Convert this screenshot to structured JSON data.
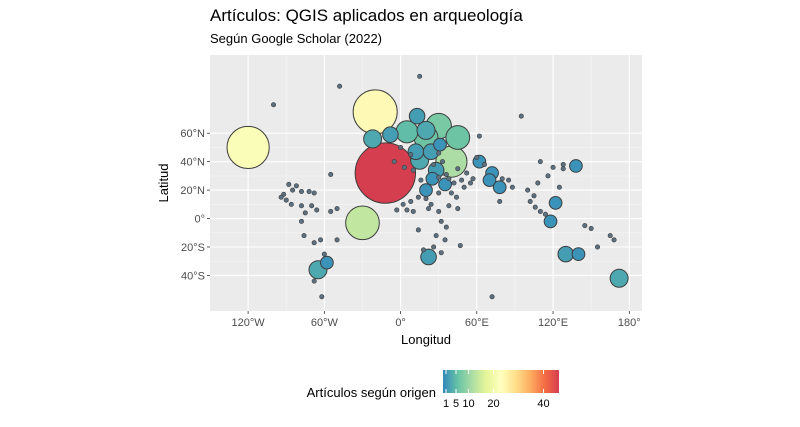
{
  "chart_data": {
    "type": "scatter",
    "title": "Artículos: QGIS aplicados en arqueología",
    "subtitle": "Según Google Scholar (2022)",
    "xlabel": "Longitud",
    "ylabel": "Latitud",
    "xlim": [
      -150,
      190
    ],
    "ylim": [
      -65,
      115
    ],
    "x_ticks": [
      {
        "value": -120,
        "label": "120°W"
      },
      {
        "value": -60,
        "label": "60°W"
      },
      {
        "value": 0,
        "label": "0°"
      },
      {
        "value": 60,
        "label": "60°E"
      },
      {
        "value": 120,
        "label": "120°E"
      },
      {
        "value": 180,
        "label": "180°"
      }
    ],
    "y_ticks": [
      {
        "value": 60,
        "label": "60°N"
      },
      {
        "value": 40,
        "label": "40°N"
      },
      {
        "value": 20,
        "label": "20°N"
      },
      {
        "value": 0,
        "label": "0°"
      },
      {
        "value": -20,
        "label": "20°S"
      },
      {
        "value": -40,
        "label": "40°S"
      }
    ],
    "grid": true,
    "legend": {
      "title": "Artículos según origen",
      "position": "bottom",
      "ticks": [
        1,
        5,
        10,
        20,
        40
      ],
      "range": [
        1,
        45
      ],
      "colors": [
        "#3288bd",
        "#66c2a5",
        "#abdda4",
        "#e6f598",
        "#ffffbf",
        "#fee08b",
        "#fdae61",
        "#f46d43",
        "#d53e4f"
      ]
    },
    "points": [
      {
        "lon": -120,
        "lat": 50,
        "n": 22
      },
      {
        "lon": -20,
        "lat": 75,
        "n": 24
      },
      {
        "lon": -12,
        "lat": 32,
        "n": 45
      },
      {
        "lon": -30,
        "lat": -3,
        "n": 14
      },
      {
        "lon": 40,
        "lat": 40,
        "n": 12
      },
      {
        "lon": 30,
        "lat": 65,
        "n": 8
      },
      {
        "lon": 45,
        "lat": 57,
        "n": 7
      },
      {
        "lon": 20,
        "lat": 57,
        "n": 7
      },
      {
        "lon": 5,
        "lat": 61,
        "n": 6
      },
      {
        "lon": -22,
        "lat": 56,
        "n": 4
      },
      {
        "lon": -8,
        "lat": 59,
        "n": 3
      },
      {
        "lon": 13,
        "lat": 72,
        "n": 3
      },
      {
        "lon": 20,
        "lat": 62,
        "n": 4
      },
      {
        "lon": 15,
        "lat": 41,
        "n": 4
      },
      {
        "lon": 12,
        "lat": 47,
        "n": 3
      },
      {
        "lon": 24,
        "lat": 47,
        "n": 3
      },
      {
        "lon": 28,
        "lat": 34,
        "n": 3
      },
      {
        "lon": 31,
        "lat": 52,
        "n": 2
      },
      {
        "lon": 25,
        "lat": 28,
        "n": 2
      },
      {
        "lon": 35,
        "lat": 24,
        "n": 2
      },
      {
        "lon": 20,
        "lat": 20,
        "n": 2
      },
      {
        "lon": 62,
        "lat": 40,
        "n": 2
      },
      {
        "lon": 72,
        "lat": 32,
        "n": 2
      },
      {
        "lon": 70,
        "lat": 27,
        "n": 2
      },
      {
        "lon": 78,
        "lat": 22,
        "n": 2
      },
      {
        "lon": 138,
        "lat": 37,
        "n": 2
      },
      {
        "lon": 122,
        "lat": 11,
        "n": 2
      },
      {
        "lon": 118,
        "lat": -2,
        "n": 2
      },
      {
        "lon": 130,
        "lat": -25,
        "n": 3
      },
      {
        "lon": 140,
        "lat": -25,
        "n": 2
      },
      {
        "lon": 172,
        "lat": -42,
        "n": 4
      },
      {
        "lon": -65,
        "lat": -36,
        "n": 4
      },
      {
        "lon": -58,
        "lat": -31,
        "n": 2
      },
      {
        "lon": 22,
        "lat": -27,
        "n": 3
      },
      {
        "lon": -48,
        "lat": 93,
        "n": 1
      },
      {
        "lon": 15,
        "lat": 100,
        "n": 1
      },
      {
        "lon": -100,
        "lat": 80,
        "n": 1
      },
      {
        "lon": 95,
        "lat": 72,
        "n": 1
      },
      {
        "lon": -88,
        "lat": 24,
        "n": 1
      },
      {
        "lon": -82,
        "lat": 23,
        "n": 1
      },
      {
        "lon": -85,
        "lat": 20,
        "n": 1
      },
      {
        "lon": -78,
        "lat": 19,
        "n": 1
      },
      {
        "lon": -72,
        "lat": 19,
        "n": 1
      },
      {
        "lon": -68,
        "lat": 18,
        "n": 1
      },
      {
        "lon": -92,
        "lat": 17,
        "n": 1
      },
      {
        "lon": -94,
        "lat": 15,
        "n": 1
      },
      {
        "lon": -90,
        "lat": 13,
        "n": 1
      },
      {
        "lon": -86,
        "lat": 10,
        "n": 1
      },
      {
        "lon": -78,
        "lat": 9,
        "n": 1
      },
      {
        "lon": -75,
        "lat": 4,
        "n": 1
      },
      {
        "lon": -70,
        "lat": 9,
        "n": 1
      },
      {
        "lon": -66,
        "lat": 6,
        "n": 1
      },
      {
        "lon": -55,
        "lat": 5,
        "n": 1
      },
      {
        "lon": -50,
        "lat": 7,
        "n": 1
      },
      {
        "lon": -78,
        "lat": -2,
        "n": 1
      },
      {
        "lon": -76,
        "lat": -12,
        "n": 1
      },
      {
        "lon": -68,
        "lat": -17,
        "n": 1
      },
      {
        "lon": -63,
        "lat": -15,
        "n": 1
      },
      {
        "lon": -60,
        "lat": -25,
        "n": 1
      },
      {
        "lon": -50,
        "lat": -15,
        "n": 1
      },
      {
        "lon": -55,
        "lat": 31,
        "n": 1
      },
      {
        "lon": -68,
        "lat": -44,
        "n": 1
      },
      {
        "lon": -62,
        "lat": -55,
        "n": 1
      },
      {
        "lon": -3,
        "lat": 6,
        "n": 1
      },
      {
        "lon": 5,
        "lat": 6,
        "n": 1
      },
      {
        "lon": 10,
        "lat": 5,
        "n": 1
      },
      {
        "lon": 8,
        "lat": 12,
        "n": 1
      },
      {
        "lon": 2,
        "lat": 10,
        "n": 1
      },
      {
        "lon": 22,
        "lat": 7,
        "n": 1
      },
      {
        "lon": 30,
        "lat": 5,
        "n": 1
      },
      {
        "lon": 38,
        "lat": 9,
        "n": 1
      },
      {
        "lon": 45,
        "lat": 7,
        "n": 1
      },
      {
        "lon": 32,
        "lat": -2,
        "n": 1
      },
      {
        "lon": 36,
        "lat": -6,
        "n": 1
      },
      {
        "lon": 28,
        "lat": -12,
        "n": 1
      },
      {
        "lon": 35,
        "lat": -15,
        "n": 1
      },
      {
        "lon": 47,
        "lat": -19,
        "n": 1
      },
      {
        "lon": 26,
        "lat": -20,
        "n": 1
      },
      {
        "lon": 18,
        "lat": -22,
        "n": 1
      },
      {
        "lon": 32,
        "lat": -24,
        "n": 1
      },
      {
        "lon": 14,
        "lat": -8,
        "n": 1
      },
      {
        "lon": 20,
        "lat": 14,
        "n": 1
      },
      {
        "lon": 44,
        "lat": 15,
        "n": 1
      },
      {
        "lon": 50,
        "lat": 22,
        "n": 1
      },
      {
        "lon": 55,
        "lat": 25,
        "n": 1
      },
      {
        "lon": 52,
        "lat": 32,
        "n": 1
      },
      {
        "lon": 45,
        "lat": 35,
        "n": 1
      },
      {
        "lon": 36,
        "lat": 31,
        "n": 1
      },
      {
        "lon": 30,
        "lat": 29,
        "n": 1
      },
      {
        "lon": 80,
        "lat": 28,
        "n": 1
      },
      {
        "lon": 85,
        "lat": 27,
        "n": 1
      },
      {
        "lon": 88,
        "lat": 22,
        "n": 1
      },
      {
        "lon": 78,
        "lat": 12,
        "n": 1
      },
      {
        "lon": 100,
        "lat": 20,
        "n": 1
      },
      {
        "lon": 105,
        "lat": 16,
        "n": 1
      },
      {
        "lon": 102,
        "lat": 12,
        "n": 1
      },
      {
        "lon": 108,
        "lat": 25,
        "n": 1
      },
      {
        "lon": 110,
        "lat": 5,
        "n": 1
      },
      {
        "lon": 114,
        "lat": 3,
        "n": 1
      },
      {
        "lon": 106,
        "lat": 8,
        "n": 1
      },
      {
        "lon": 110,
        "lat": 40,
        "n": 1
      },
      {
        "lon": 116,
        "lat": 30,
        "n": 1
      },
      {
        "lon": 120,
        "lat": 36,
        "n": 1
      },
      {
        "lon": 128,
        "lat": 38,
        "n": 1
      },
      {
        "lon": 128,
        "lat": 35,
        "n": 1
      },
      {
        "lon": 125,
        "lat": 22,
        "n": 1
      },
      {
        "lon": 145,
        "lat": -5,
        "n": 1
      },
      {
        "lon": 150,
        "lat": -7,
        "n": 1
      },
      {
        "lon": 165,
        "lat": -12,
        "n": 1
      },
      {
        "lon": 168,
        "lat": -15,
        "n": 1
      },
      {
        "lon": 155,
        "lat": -20,
        "n": 1
      },
      {
        "lon": 62,
        "lat": 58,
        "n": 1
      },
      {
        "lon": 60,
        "lat": 43,
        "n": 1
      },
      {
        "lon": 66,
        "lat": 38,
        "n": 1
      },
      {
        "lon": 72,
        "lat": -55,
        "n": 1
      },
      {
        "lon": 0,
        "lat": 50,
        "n": 1
      },
      {
        "lon": -5,
        "lat": 40,
        "n": 1
      },
      {
        "lon": 8,
        "lat": 45,
        "n": 1
      },
      {
        "lon": 3,
        "lat": 36,
        "n": 1
      },
      {
        "lon": 10,
        "lat": 34,
        "n": 1
      },
      {
        "lon": 16,
        "lat": 27,
        "n": 1
      },
      {
        "lon": 26,
        "lat": 38,
        "n": 1
      },
      {
        "lon": 33,
        "lat": 40,
        "n": 1
      },
      {
        "lon": 38,
        "lat": 28,
        "n": 1
      },
      {
        "lon": 42,
        "lat": 25,
        "n": 1
      },
      {
        "lon": 57,
        "lat": 28,
        "n": 1
      },
      {
        "lon": 48,
        "lat": 27,
        "n": 1
      },
      {
        "lon": 40,
        "lat": 18,
        "n": 1
      },
      {
        "lon": 30,
        "lat": 18,
        "n": 1
      },
      {
        "lon": 24,
        "lat": 10,
        "n": 1
      },
      {
        "lon": 30,
        "lat": 46,
        "n": 1
      },
      {
        "lon": 14,
        "lat": 15,
        "n": 1
      }
    ]
  }
}
